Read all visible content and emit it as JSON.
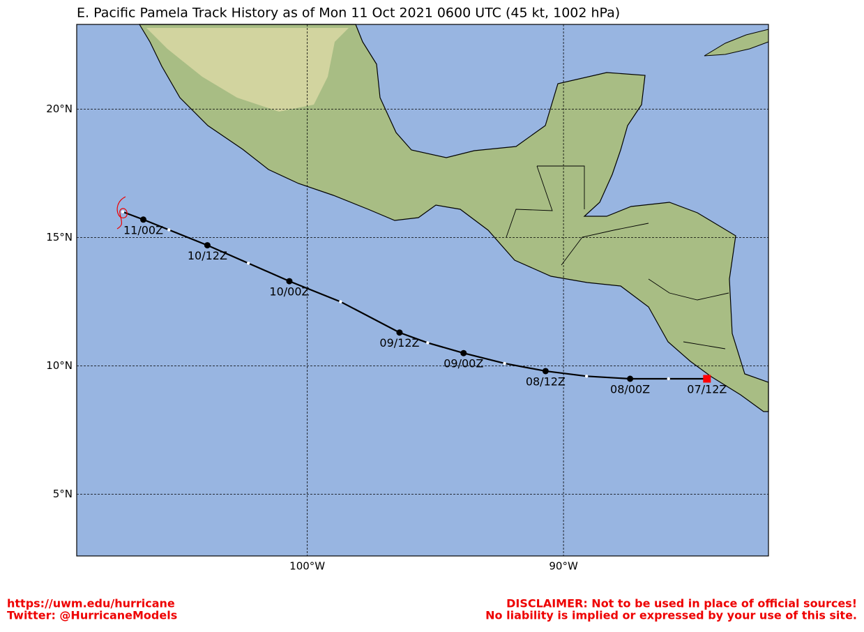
{
  "title": "E. Pacific Pamela Track History as of Mon 11 Oct 2021 0600 UTC (45 kt, 1002 hPa)",
  "map": {
    "xlim": [
      -109,
      -82
    ],
    "ylim": [
      2.6,
      23.3
    ],
    "xticks": [
      {
        "value": -100,
        "label": "100°W"
      },
      {
        "value": -90,
        "label": "90°W"
      }
    ],
    "yticks": [
      {
        "value": 5,
        "label": "5°N"
      },
      {
        "value": 10,
        "label": "10°N"
      },
      {
        "value": 15,
        "label": "15°N"
      },
      {
        "value": 20,
        "label": "20°N"
      }
    ],
    "grid": true
  },
  "track": {
    "lon": [
      -84.4,
      -85.9,
      -87.4,
      -89.1,
      -90.7,
      -92.3,
      -93.9,
      -95.3,
      -96.4,
      -98.7,
      -100.7,
      -102.3,
      -103.9,
      -105.4,
      -106.4,
      -107.2
    ],
    "lat": [
      9.5,
      9.5,
      9.5,
      9.6,
      9.8,
      10.1,
      10.5,
      10.9,
      11.3,
      12.5,
      13.3,
      14.0,
      14.7,
      15.3,
      15.7,
      16.0
    ],
    "labels": [
      "07/12Z",
      null,
      "08/00Z",
      null,
      "08/12Z",
      null,
      "09/00Z",
      null,
      "09/12Z",
      null,
      "10/00Z",
      null,
      "10/12Z",
      null,
      "11/00Z",
      null
    ]
  },
  "footer": {
    "left": [
      "https://uwm.edu/hurricane",
      "Twitter: @HurricaneModels"
    ],
    "right": [
      "DISCLAIMER: Not to be used in place of official sources!",
      "No liability is implied or expressed by your use of this site."
    ]
  }
}
